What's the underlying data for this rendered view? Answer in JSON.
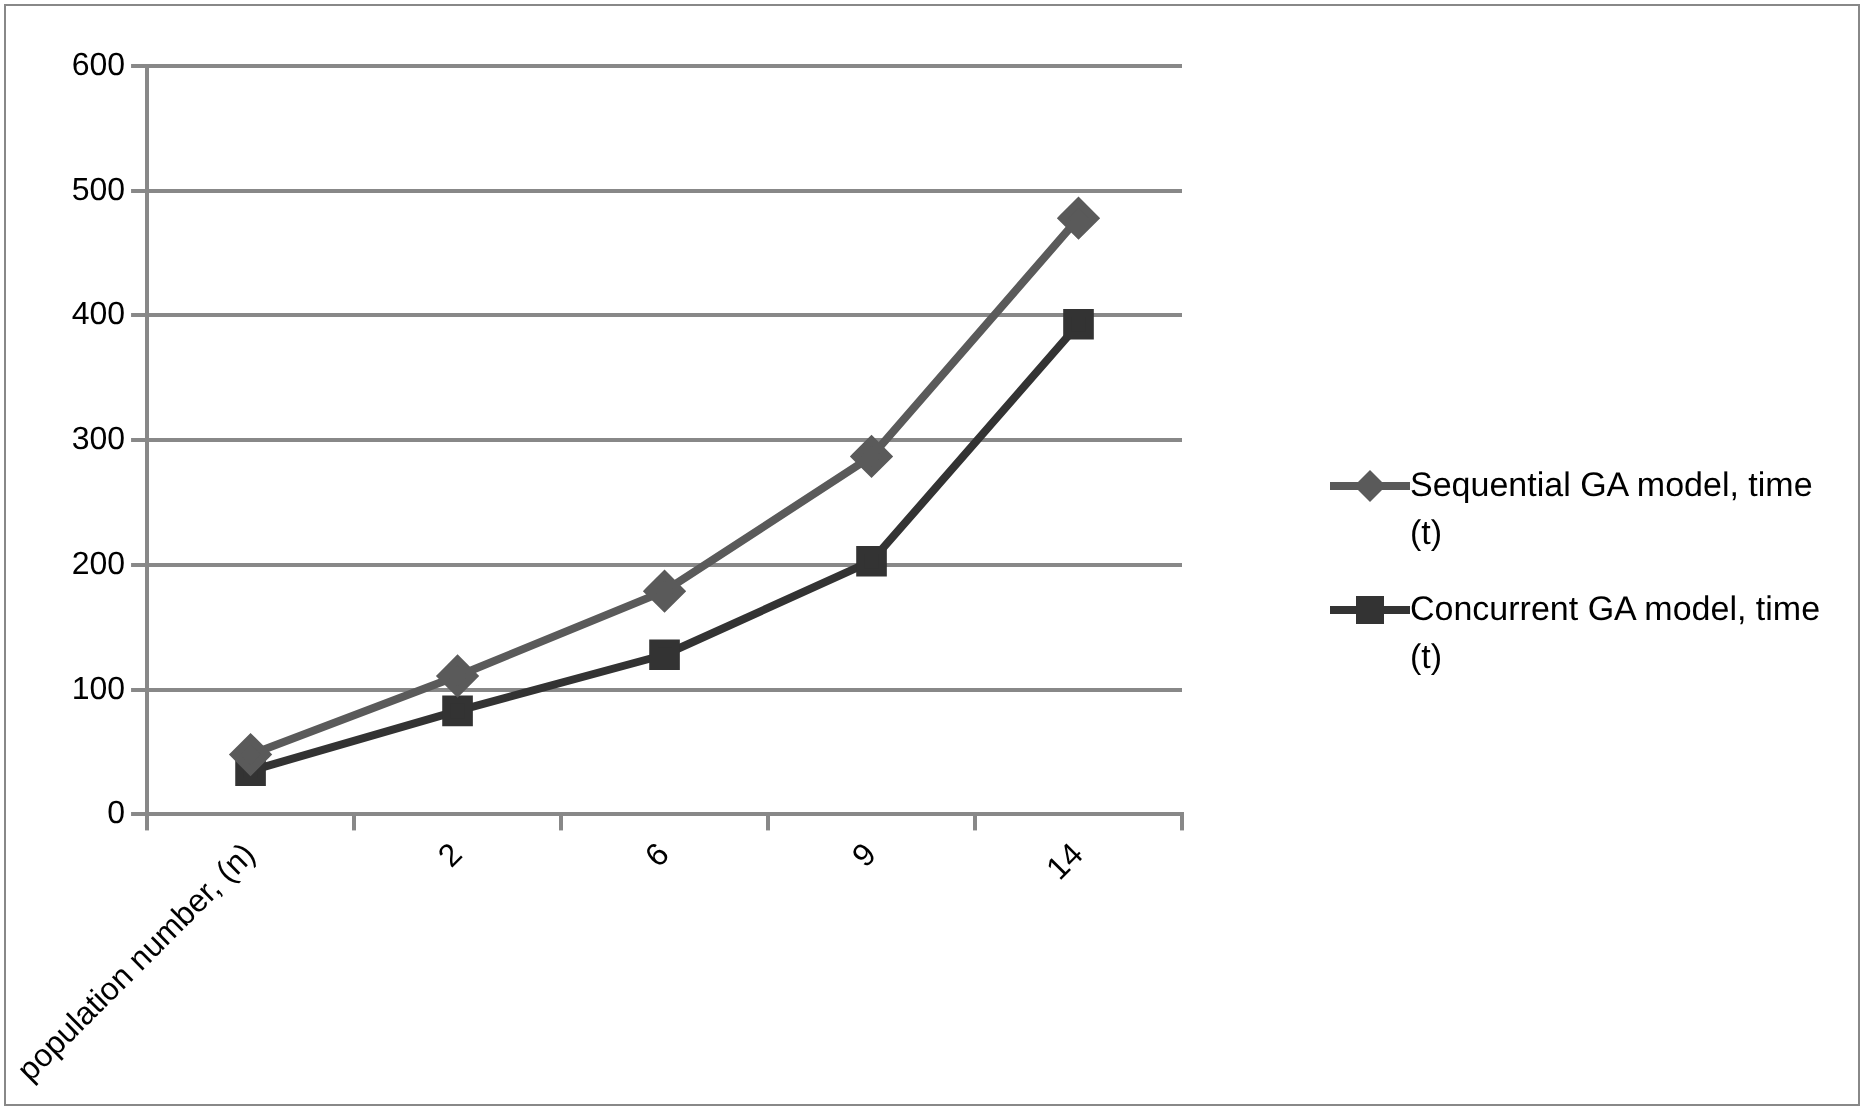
{
  "chart_data": {
    "type": "line",
    "categories": [
      "population number, (n)",
      "2",
      "6",
      "9",
      "14"
    ],
    "series": [
      {
        "name": "Sequential GA model, time (t)",
        "color": "#5a5a5a",
        "marker": "diamond",
        "values": [
          48,
          111,
          179,
          287,
          478
        ]
      },
      {
        "name": "Concurrent GA model, time  (t)",
        "color": "#333333",
        "marker": "square",
        "values": [
          35,
          83,
          128,
          203,
          393
        ]
      }
    ],
    "ylim": [
      0,
      600
    ],
    "yticks": [
      0,
      100,
      200,
      300,
      400,
      500,
      600
    ],
    "grid": "y",
    "legend": "right",
    "line_style": "solid"
  }
}
